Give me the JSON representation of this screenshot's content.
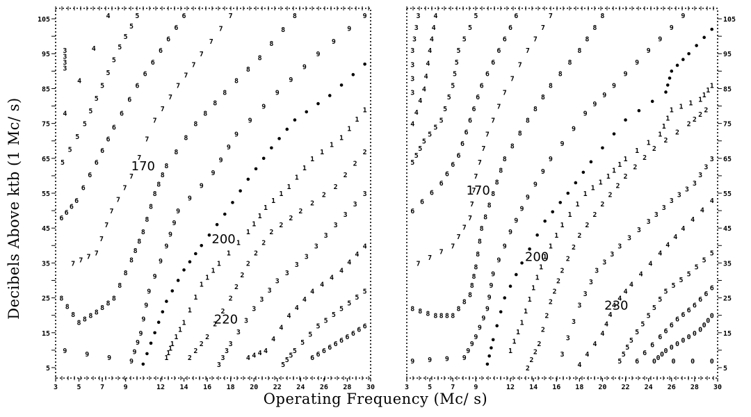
{
  "chart_data": [
    {
      "type": "scatter",
      "panel": "left",
      "xlabel": "Operating Frequency (Mc/ s)",
      "ylabel": "Decibels Above ktb (1 Mc/ s)",
      "xlim": [
        3,
        30
      ],
      "ylim": [
        2,
        108
      ],
      "x_ticks": [
        "3",
        "5",
        "7",
        "9",
        "12",
        "14",
        "16",
        "18",
        "20",
        "22",
        "24",
        "26",
        "28",
        "30"
      ],
      "y_ticks": [
        "105",
        "95",
        "85",
        "75",
        "65",
        "55",
        "45",
        "35",
        "25",
        "15",
        "5"
      ],
      "level_labels": [
        {
          "text": "170",
          "x": 10.5,
          "y": 63
        },
        {
          "text": "200",
          "x": 17.4,
          "y": 42
        },
        {
          "text": "220",
          "x": 17.6,
          "y": 19
        }
      ],
      "contours": [
        {
          "digit": "3",
          "points": [
            [
              3.8,
              96
            ],
            [
              3.8,
              91
            ]
          ]
        },
        {
          "digit": "4",
          "points": [
            [
              7.5,
              106
            ],
            [
              3.8,
              78
            ]
          ]
        },
        {
          "digit": "5",
          "points": [
            [
              10.0,
              106
            ],
            [
              8.5,
              97
            ],
            [
              7.0,
              86
            ],
            [
              5.5,
              75
            ],
            [
              3.6,
              64
            ]
          ]
        },
        {
          "digit": "6",
          "points": [
            [
              14.0,
              106
            ],
            [
              12.0,
              96
            ],
            [
              10.0,
              86
            ],
            [
              8.0,
              74
            ],
            [
              6.5,
              64
            ],
            [
              4.8,
              53
            ],
            [
              3.5,
              48
            ]
          ]
        },
        {
          "digit": "7",
          "points": [
            [
              18.0,
              106
            ],
            [
              15.5,
              95
            ],
            [
              13.5,
              86
            ],
            [
              11.5,
              76
            ],
            [
              9.5,
              60
            ],
            [
              7.8,
              50
            ],
            [
              6.5,
              38
            ],
            [
              4.5,
              35
            ]
          ]
        },
        {
          "digit": "8",
          "points": [
            [
              23.5,
              106
            ],
            [
              20.5,
              94
            ],
            [
              17.5,
              84
            ],
            [
              15.0,
              75
            ],
            [
              12.5,
              63
            ],
            [
              11.5,
              55
            ],
            [
              10.5,
              44
            ],
            [
              9.5,
              36
            ],
            [
              8.0,
              25
            ],
            [
              6.5,
              21
            ],
            [
              5.0,
              18
            ],
            [
              3.5,
              25
            ]
          ]
        },
        {
          "digit": "9",
          "points": [
            [
              29.5,
              106
            ],
            [
              25.5,
              95
            ],
            [
              22.0,
              84
            ],
            [
              18.5,
              72
            ],
            [
              16.5,
              61
            ],
            [
              13.5,
              50
            ],
            [
              12.5,
              40
            ],
            [
              11.0,
              27
            ],
            [
              10.3,
              15
            ],
            [
              9.5,
              7
            ],
            [
              3.8,
              10
            ]
          ]
        },
        {
          "digit": "•",
          "points": [
            [
              29.5,
              92
            ],
            [
              26.5,
              83
            ],
            [
              23.5,
              76
            ],
            [
              21.5,
              68
            ],
            [
              19.5,
              59
            ],
            [
              17.5,
              49
            ],
            [
              15.5,
              40
            ],
            [
              14.0,
              33
            ],
            [
              12.5,
              24
            ],
            [
              11.5,
              15
            ],
            [
              10.5,
              6
            ]
          ]
        },
        {
          "digit": "1",
          "points": [
            [
              29.5,
              79
            ],
            [
              27.5,
              71
            ],
            [
              25.0,
              65
            ],
            [
              23.0,
              57
            ],
            [
              21.0,
              51
            ],
            [
              19.5,
              44
            ],
            [
              17.0,
              35
            ],
            [
              15.5,
              29
            ],
            [
              14.0,
              18
            ],
            [
              13.0,
              12
            ],
            [
              12.5,
              8
            ]
          ]
        },
        {
          "digit": "2",
          "points": [
            [
              29.5,
              67
            ],
            [
              27.0,
              57
            ],
            [
              24.0,
              50
            ],
            [
              21.5,
              44
            ],
            [
              19.5,
              35
            ],
            [
              18.0,
              25
            ],
            [
              16.0,
              14
            ],
            [
              14.5,
              8
            ]
          ]
        },
        {
          "digit": "3",
          "points": [
            [
              29.5,
              55
            ],
            [
              27.0,
              46
            ],
            [
              24.5,
              37
            ],
            [
              22.0,
              30
            ],
            [
              20.0,
              22
            ],
            [
              18.0,
              12
            ],
            [
              17.0,
              6
            ]
          ]
        },
        {
          "digit": "4",
          "points": [
            [
              29.5,
              40
            ],
            [
              27.5,
              33
            ],
            [
              25.0,
              27
            ],
            [
              23.0,
              20
            ],
            [
              21.0,
              10
            ],
            [
              19.5,
              8
            ]
          ]
        },
        {
          "digit": "5",
          "points": [
            [
              29.5,
              27
            ],
            [
              27.5,
              22
            ],
            [
              25.5,
              17
            ],
            [
              23.5,
              10
            ],
            [
              22.5,
              6
            ]
          ]
        },
        {
          "digit": "6",
          "points": [
            [
              29.5,
              17
            ],
            [
              28.0,
              14
            ],
            [
              26.5,
              11
            ],
            [
              25.0,
              8
            ]
          ]
        }
      ]
    },
    {
      "type": "scatter",
      "panel": "right",
      "xlim": [
        3,
        30
      ],
      "ylim": [
        2,
        108
      ],
      "x_ticks": [
        "3",
        "5",
        "7",
        "9",
        "12",
        "14",
        "16",
        "18",
        "20",
        "22",
        "24",
        "26",
        "28",
        "30"
      ],
      "y_ticks": [
        "105",
        "95",
        "85",
        "75",
        "65",
        "55",
        "45",
        "35",
        "25",
        "15",
        "5"
      ],
      "level_labels": [
        {
          "text": "170",
          "x": 9.2,
          "y": 56
        },
        {
          "text": "200",
          "x": 14.3,
          "y": 37
        },
        {
          "text": "230",
          "x": 21.2,
          "y": 23
        }
      ],
      "contours": [
        {
          "digit": "3",
          "points": [
            [
              4.0,
              106
            ],
            [
              3.5,
              96
            ],
            [
              3.5,
              84
            ]
          ]
        },
        {
          "digit": "4",
          "points": [
            [
              5.5,
              106
            ],
            [
              5.0,
              96
            ],
            [
              4.5,
              85
            ],
            [
              3.5,
              75
            ]
          ]
        },
        {
          "digit": "5",
          "points": [
            [
              9.0,
              106
            ],
            [
              7.5,
              96
            ],
            [
              7.0,
              86
            ],
            [
              6.0,
              76
            ],
            [
              4.5,
              70
            ],
            [
              3.5,
              64
            ]
          ]
        },
        {
          "digit": "6",
          "points": [
            [
              12.5,
              106
            ],
            [
              11.0,
              96
            ],
            [
              9.5,
              86
            ],
            [
              8.5,
              76
            ],
            [
              7.5,
              66
            ],
            [
              6.0,
              58
            ],
            [
              3.5,
              50
            ]
          ]
        },
        {
          "digit": "7",
          "points": [
            [
              15.5,
              106
            ],
            [
              13.5,
              96
            ],
            [
              11.5,
              84
            ],
            [
              10.0,
              72
            ],
            [
              9.0,
              60
            ],
            [
              8.5,
              48
            ],
            [
              7.0,
              40
            ],
            [
              4.0,
              35
            ]
          ]
        },
        {
          "digit": "8",
          "points": [
            [
              20.0,
              106
            ],
            [
              18.0,
              96
            ],
            [
              15.5,
              86
            ],
            [
              13.5,
              76
            ],
            [
              11.5,
              65
            ],
            [
              10.5,
              55
            ],
            [
              9.5,
              45
            ],
            [
              9.0,
              34
            ],
            [
              8.5,
              26
            ],
            [
              7.0,
              20
            ],
            [
              5.5,
              20
            ],
            [
              3.5,
              22
            ]
          ]
        },
        {
          "digit": "9",
          "points": [
            [
              27.0,
              106
            ],
            [
              24.0,
              96
            ],
            [
              21.0,
              86
            ],
            [
              18.5,
              78
            ],
            [
              15.5,
              65
            ],
            [
              13.5,
              54
            ],
            [
              12.0,
              44
            ],
            [
              10.5,
              32
            ],
            [
              10.0,
              22
            ],
            [
              9.0,
              14
            ],
            [
              8.0,
              8
            ],
            [
              3.5,
              7
            ]
          ]
        },
        {
          "digit": "•",
          "points": [
            [
              29.5,
              102
            ],
            [
              27.5,
              95
            ],
            [
              26.0,
              90
            ],
            [
              25.5,
              84
            ],
            [
              22.0,
              76
            ],
            [
              19.0,
              64
            ],
            [
              17.0,
              55
            ],
            [
              15.0,
              47
            ],
            [
              13.0,
              35
            ],
            [
              11.5,
              25
            ],
            [
              10.5,
              13
            ],
            [
              10.0,
              6
            ]
          ]
        },
        {
          "digit": "1",
          "points": [
            [
              29.5,
              86
            ],
            [
              28.5,
              82
            ],
            [
              26.0,
              79
            ],
            [
              25.0,
              72
            ],
            [
              22.0,
              65
            ],
            [
              20.5,
              60
            ],
            [
              18.5,
              55
            ],
            [
              16.5,
              46
            ],
            [
              15.0,
              37
            ],
            [
              14.0,
              28
            ],
            [
              13.0,
              18
            ],
            [
              12.0,
              10
            ]
          ]
        },
        {
          "digit": "2",
          "points": [
            [
              29.0,
              79
            ],
            [
              27.5,
              75
            ],
            [
              24.5,
              68
            ],
            [
              22.0,
              60
            ],
            [
              20.0,
              52
            ],
            [
              18.0,
              43
            ],
            [
              16.5,
              33
            ],
            [
              15.5,
              24
            ],
            [
              14.5,
              12
            ],
            [
              13.5,
              5
            ]
          ]
        },
        {
          "digit": "3",
          "points": [
            [
              29.5,
              65
            ],
            [
              28.0,
              58
            ],
            [
              26.0,
              53
            ],
            [
              24.0,
              47
            ],
            [
              21.5,
              40
            ],
            [
              19.5,
              33
            ],
            [
              18.0,
              23
            ],
            [
              16.5,
              9
            ]
          ]
        },
        {
          "digit": "4",
          "points": [
            [
              29.5,
              53
            ],
            [
              27.0,
              45
            ],
            [
              25.0,
              38
            ],
            [
              22.5,
              29
            ],
            [
              21.0,
              23
            ],
            [
              20.0,
              15
            ],
            [
              18.0,
              6
            ]
          ]
        },
        {
          "digit": "5",
          "points": [
            [
              29.5,
              38
            ],
            [
              27.5,
              32
            ],
            [
              25.5,
              27
            ],
            [
              24.0,
              20
            ],
            [
              22.5,
              13
            ],
            [
              21.5,
              7
            ]
          ]
        },
        {
          "digit": "6",
          "points": [
            [
              29.5,
              28
            ],
            [
              28.0,
              23
            ],
            [
              26.5,
              19
            ],
            [
              25.0,
              14
            ],
            [
              23.0,
              7
            ]
          ]
        },
        {
          "digit": "0",
          "points": [
            [
              29.5,
              20
            ],
            [
              28.5,
              16
            ],
            [
              27.0,
              13
            ],
            [
              25.5,
              10
            ],
            [
              24.5,
              7
            ],
            [
              29.5,
              7
            ]
          ]
        }
      ]
    }
  ]
}
